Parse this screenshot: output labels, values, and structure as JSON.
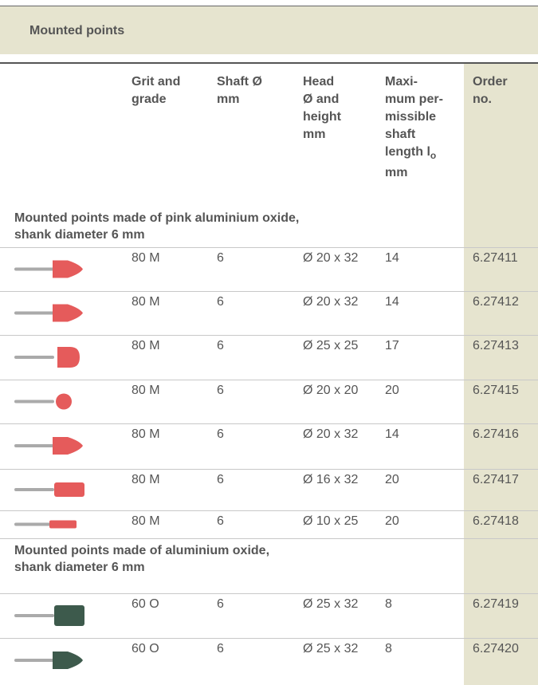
{
  "header": {
    "title": "Mounted points"
  },
  "table": {
    "columns": [
      {
        "lines": [
          "Grit and",
          "grade"
        ]
      },
      {
        "lines": [
          "Shaft Ø",
          "mm"
        ]
      },
      {
        "lines": [
          "Head",
          "Ø and",
          "height",
          "mm"
        ]
      },
      {
        "lines": [
          "Maxi-",
          "mum per-",
          "missible",
          "shaft",
          "length l"
        ],
        "subscript": "o",
        "last_line": "mm"
      },
      {
        "lines": [
          "Order",
          "no."
        ]
      }
    ],
    "groups": [
      {
        "title_lines": [
          "Mounted points made of pink aluminium oxide,",
          "shank diameter 6 mm"
        ],
        "rows": [
          [
            "80 M",
            "6",
            "Ø 20 x 32",
            "14",
            "6.27411"
          ],
          [
            "80 M",
            "6",
            "Ø 20 x 32",
            "14",
            "6.27412"
          ],
          [
            "80 M",
            "6",
            "Ø 25 x 25",
            "17",
            "6.27413"
          ],
          [
            "80 M",
            "6",
            "Ø 20 x 20",
            "20",
            "6.27415"
          ],
          [
            "80 M",
            "6",
            "Ø 20 x 32",
            "14",
            "6.27416"
          ],
          [
            "80 M",
            "6",
            "Ø 16 x 32",
            "20",
            "6.27417"
          ],
          [
            "80 M",
            "6",
            "Ø 10 x 25",
            "20",
            "6.27418"
          ]
        ]
      },
      {
        "title_lines": [
          "Mounted points made of aluminium oxide,",
          "shank diameter 6 mm"
        ],
        "rows": [
          [
            "60 O",
            "6",
            "Ø 25 x 32",
            "8",
            "6.27419"
          ],
          [
            "60 O",
            "6",
            "Ø 25 x 32",
            "8",
            "6.27420"
          ]
        ]
      }
    ]
  }
}
